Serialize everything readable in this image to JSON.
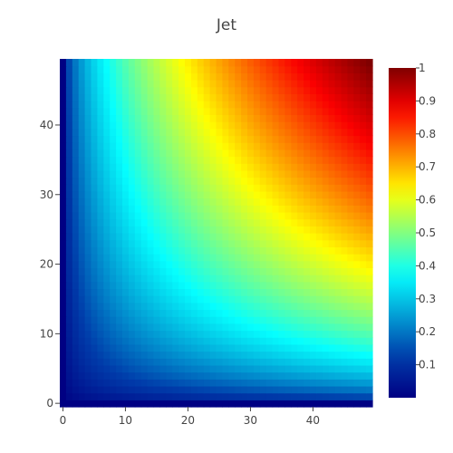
{
  "chart_data": {
    "type": "heatmap",
    "title": "Jet",
    "colorscale": "Jet",
    "x_range": [
      0,
      49
    ],
    "y_range": [
      0,
      49
    ],
    "x_ticks": [
      0,
      10,
      20,
      30,
      40
    ],
    "y_ticks": [
      0,
      10,
      20,
      30,
      40
    ],
    "z_formula": "z = sqrt(x*y) / 49",
    "z_range": [
      0,
      1
    ],
    "colorbar_ticks": [
      0.1,
      0.2,
      0.3,
      0.4,
      0.5,
      0.6,
      0.7,
      0.8,
      0.9,
      1
    ],
    "colorbar_labels": [
      "0.1",
      "0.2",
      "0.3",
      "0.4",
      "0.5",
      "0.6",
      "0.7",
      "0.8",
      "0.9",
      "1"
    ],
    "jet_colors": [
      "#000083",
      "#003caa",
      "#05ffff",
      "#ffff00",
      "#fa0000",
      "#800000"
    ],
    "jet_stops": [
      0,
      0.125,
      0.375,
      0.625,
      0.875,
      1
    ]
  }
}
